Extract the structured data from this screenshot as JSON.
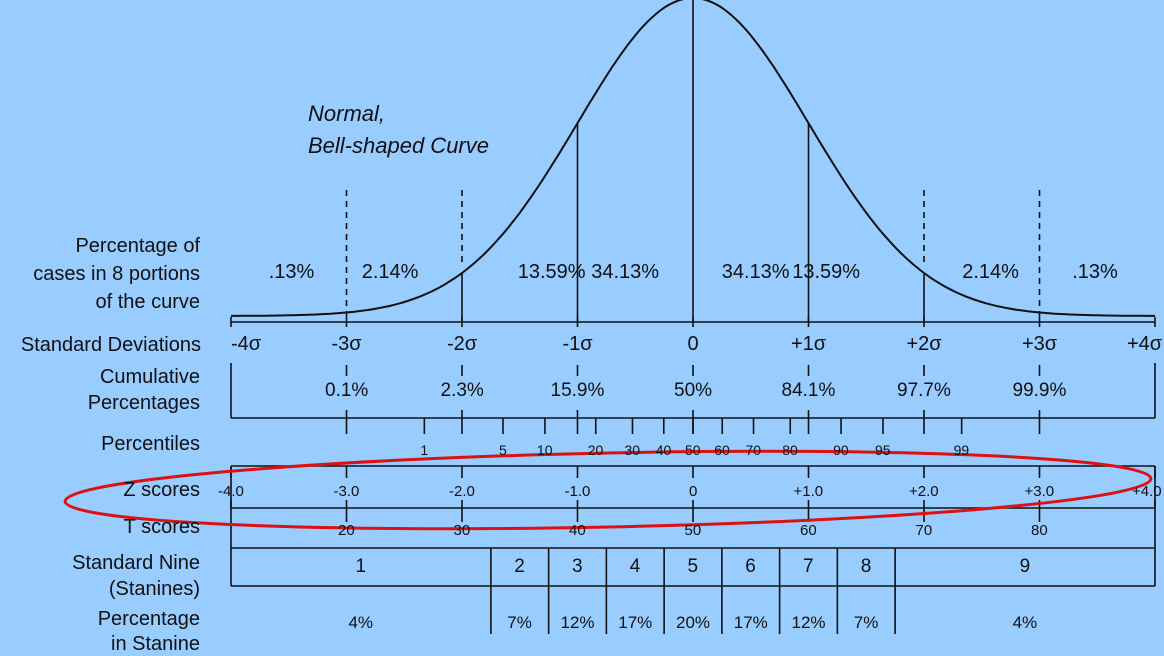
{
  "title": {
    "line1": "Normal,",
    "line2": "Bell-shaped Curve"
  },
  "row_labels": {
    "percentage_cases": [
      "Percentage of",
      "cases in 8 portions",
      "of the curve"
    ],
    "standard_deviations": "Standard Deviations",
    "cumulative": [
      "Cumulative",
      "Percentages"
    ],
    "percentiles": "Percentiles",
    "z_scores": "Z scores",
    "t_scores": "T scores",
    "stanine": [
      "Standard Nine",
      "(Stanines)"
    ],
    "stanine_pct": [
      "Percentage",
      "in Stanine"
    ]
  },
  "portion_percentages": [
    ".13%",
    "2.14%",
    "13.59%",
    "34.13%",
    "34.13%",
    "13.59%",
    "2.14%",
    ".13%"
  ],
  "sd_labels": [
    "-4σ",
    "-3σ",
    "-2σ",
    "-1σ",
    "0",
    "+1σ",
    "+2σ",
    "+3σ",
    "+4σ"
  ],
  "cumulative_pct": [
    {
      "z": -3,
      "label": "0.1%"
    },
    {
      "z": -2,
      "label": "2.3%"
    },
    {
      "z": -1,
      "label": "15.9%"
    },
    {
      "z": 0,
      "label": "50%"
    },
    {
      "z": 1,
      "label": "84.1%"
    },
    {
      "z": 2,
      "label": "97.7%"
    },
    {
      "z": 3,
      "label": "99.9%"
    }
  ],
  "percentiles": [
    {
      "z": -2.326,
      "label": "1"
    },
    {
      "z": -1.645,
      "label": "5"
    },
    {
      "z": -1.282,
      "label": "10"
    },
    {
      "z": -0.842,
      "label": "20"
    },
    {
      "z": -0.524,
      "label": "30"
    },
    {
      "z": -0.253,
      "label": "40"
    },
    {
      "z": 0,
      "label": "50"
    },
    {
      "z": 0.253,
      "label": "60"
    },
    {
      "z": 0.524,
      "label": "70"
    },
    {
      "z": 0.842,
      "label": "80"
    },
    {
      "z": 1.282,
      "label": "90"
    },
    {
      "z": 1.645,
      "label": "95"
    },
    {
      "z": 2.326,
      "label": "99"
    }
  ],
  "z_scores": [
    "-4.0",
    "-3.0",
    "-2.0",
    "-1.0",
    "0",
    "+1.0",
    "+2.0",
    "+3.0",
    "+4.0"
  ],
  "t_scores": [
    {
      "z": -3,
      "label": "20"
    },
    {
      "z": -2,
      "label": "30"
    },
    {
      "z": -1,
      "label": "40"
    },
    {
      "z": 0,
      "label": "50"
    },
    {
      "z": 1,
      "label": "60"
    },
    {
      "z": 2,
      "label": "70"
    },
    {
      "z": 3,
      "label": "80"
    }
  ],
  "stanines": [
    "1",
    "2",
    "3",
    "4",
    "5",
    "6",
    "7",
    "8",
    "9"
  ],
  "stanine_percentages": [
    "4%",
    "7%",
    "12%",
    "17%",
    "20%",
    "17%",
    "12%",
    "7%",
    "4%"
  ],
  "stanine_bounds_z": [
    -1.75,
    -1.25,
    -0.75,
    -0.25,
    0.25,
    0.75,
    1.25,
    1.75
  ],
  "colors": {
    "background": "#99ccff",
    "line": "#111111",
    "highlight": "#dd1111"
  }
}
